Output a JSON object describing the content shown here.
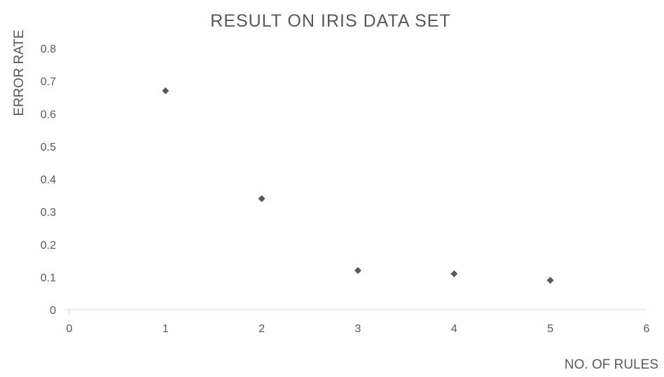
{
  "chart_data": {
    "type": "scatter",
    "title": "RESULT ON IRIS DATA SET",
    "xlabel": "NO. OF RULES",
    "ylabel": "ERROR RATE",
    "xlim": [
      0,
      6
    ],
    "ylim": [
      0,
      0.8
    ],
    "xticks": [
      "0",
      "1",
      "2",
      "3",
      "4",
      "5",
      "6"
    ],
    "yticks": [
      "0",
      "0.1",
      "0.2",
      "0.3",
      "0.4",
      "0.5",
      "0.6",
      "0.7",
      "0.8"
    ],
    "grid": false,
    "legend": "none",
    "marker": "diamond",
    "colors": {
      "marker": "#595959",
      "axis": "#d9d9d9",
      "text": "#595959"
    },
    "series": [
      {
        "x": [
          1,
          2,
          3,
          4,
          5
        ],
        "y": [
          0.67,
          0.34,
          0.12,
          0.11,
          0.09
        ]
      }
    ]
  }
}
